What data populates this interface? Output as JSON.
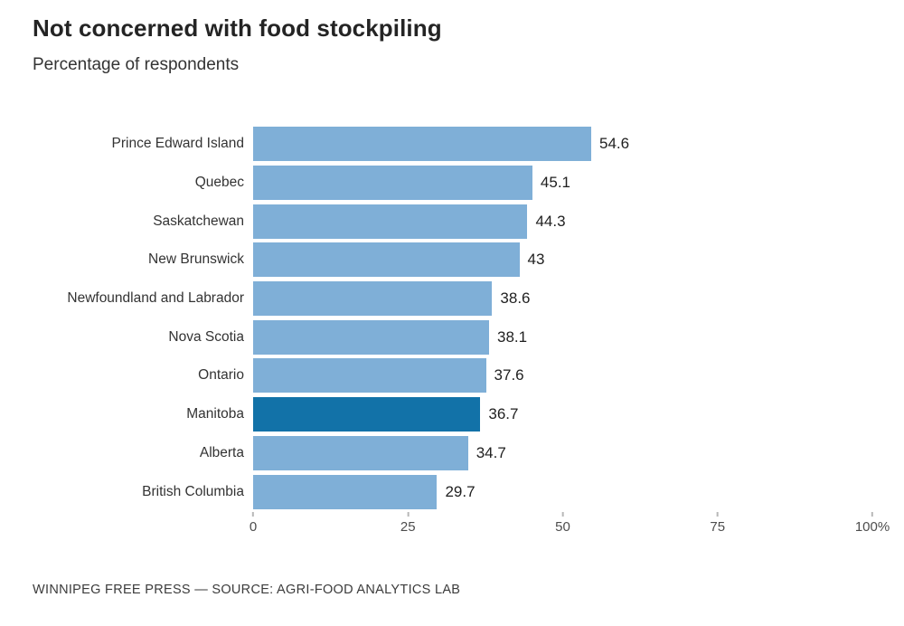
{
  "header": {
    "title": "Not concerned with food stockpiling",
    "subtitle": "Percentage of respondents"
  },
  "footer": {
    "credit": "WINNIPEG FREE PRESS — SOURCE: AGRI-FOOD ANALYTICS LAB"
  },
  "chart_data": {
    "type": "bar",
    "orientation": "horizontal",
    "title": "Not concerned with food stockpiling",
    "subtitle": "Percentage of respondents",
    "xlabel": "",
    "ylabel": "",
    "categories": [
      "Prince Edward Island",
      "Quebec",
      "Saskatchewan",
      "New Brunswick",
      "Newfoundland and Labrador",
      "Nova Scotia",
      "Ontario",
      "Manitoba",
      "Alberta",
      "British Columbia"
    ],
    "values": [
      54.6,
      45.1,
      44.3,
      43,
      38.6,
      38.1,
      37.6,
      36.7,
      34.7,
      29.7
    ],
    "value_labels": [
      "54.6",
      "45.1",
      "44.3",
      "43",
      "38.6",
      "38.1",
      "37.6",
      "36.7",
      "34.7",
      "29.7"
    ],
    "highlight_category": "Manitoba",
    "xlim": [
      0,
      100
    ],
    "x_tick_values": [
      0,
      25,
      50,
      75,
      100
    ],
    "x_tick_labels": [
      "0",
      "25",
      "50",
      "75",
      "100%"
    ],
    "grid": false,
    "legend": "none",
    "colors": {
      "bar": "#7fafd7",
      "highlight": "#1272a8",
      "background": "#ffffff"
    }
  }
}
